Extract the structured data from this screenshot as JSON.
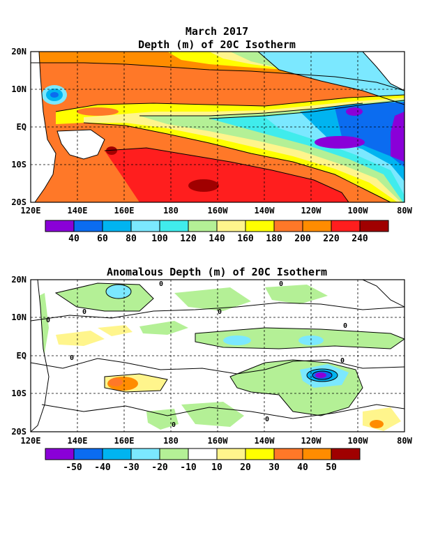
{
  "chart_data": [
    {
      "type": "heatmap",
      "title": "March 2017",
      "subtitle": "Depth (m) of 20C Isotherm",
      "x_tick_labels": [
        "120E",
        "140E",
        "160E",
        "180",
        "160W",
        "140W",
        "120W",
        "100W",
        "80W"
      ],
      "y_tick_labels": [
        "20N",
        "10N",
        "EQ",
        "10S",
        "20S"
      ],
      "x_range": [
        "120E",
        "80W"
      ],
      "y_range": [
        "20S",
        "20N"
      ],
      "grid": true,
      "colorbar": {
        "labels": [
          "40",
          "60",
          "80",
          "100",
          "120",
          "140",
          "160",
          "180",
          "200",
          "220",
          "240"
        ],
        "colors": [
          "#8a00d8",
          "#0b6cf0",
          "#00b4f0",
          "#7be8ff",
          "#40ecec",
          "#b4f096",
          "#fff58c",
          "#ffff00",
          "#ff7828",
          "#ff8c00",
          "#ff1e1e",
          "#a00000"
        ]
      }
    },
    {
      "type": "heatmap",
      "title": "Anomalous Depth (m) of 20C Isotherm",
      "x_tick_labels": [
        "120E",
        "140E",
        "160E",
        "180",
        "160W",
        "140W",
        "120W",
        "100W",
        "80W"
      ],
      "y_tick_labels": [
        "20N",
        "10N",
        "EQ",
        "10S",
        "20S"
      ],
      "x_range": [
        "120E",
        "80W"
      ],
      "y_range": [
        "20S",
        "20N"
      ],
      "grid": true,
      "contour_labels": [
        "0",
        "0",
        "0",
        "0",
        "0",
        "0",
        "0",
        "0",
        "0",
        "0"
      ],
      "colorbar": {
        "labels": [
          "-50",
          "-40",
          "-30",
          "-20",
          "-10",
          "10",
          "20",
          "30",
          "40",
          "50"
        ],
        "colors": [
          "#8a00d8",
          "#0b6cf0",
          "#00b4f0",
          "#7be8ff",
          "#b4f096",
          "#ffffff",
          "#fff58c",
          "#ffff00",
          "#ff7828",
          "#ff8c00",
          "#a00000"
        ]
      }
    }
  ]
}
